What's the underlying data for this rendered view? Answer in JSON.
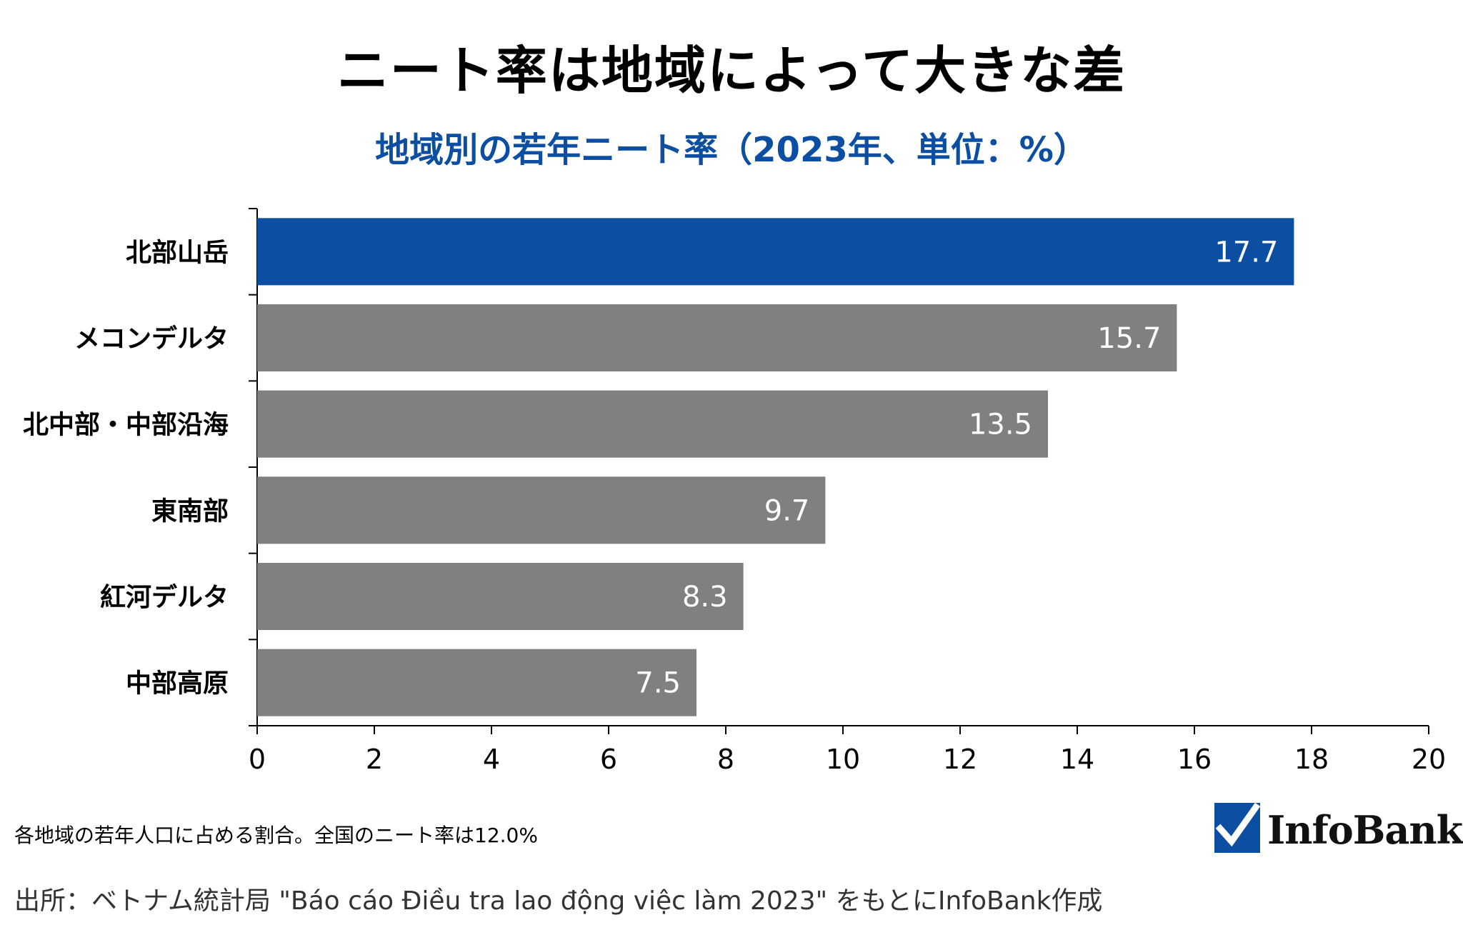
{
  "title": "ニート率は地域によって大きな差",
  "subtitle": "地域別の若年ニート率（2023年、単位：%）",
  "chart_data": {
    "type": "bar",
    "orientation": "horizontal",
    "categories": [
      "北部山岳",
      "メコンデルタ",
      "北中部・中部沿海",
      "東南部",
      "紅河デルタ",
      "中部高原"
    ],
    "values": [
      17.7,
      15.7,
      13.5,
      9.7,
      8.3,
      7.5
    ],
    "value_labels": [
      "17.7",
      "15.7",
      "13.5",
      "9.7",
      "8.3",
      "7.5"
    ],
    "x_ticks": [
      "0",
      "2",
      "4",
      "6",
      "8",
      "10",
      "12",
      "14",
      "16",
      "18",
      "20"
    ],
    "xlim": [
      0,
      20
    ],
    "xlabel": "",
    "ylabel": "",
    "grid": false,
    "colors": {
      "highlight": "#0b4ea2",
      "default": "#808080",
      "label_text": "#ffffff"
    },
    "highlight_index": 0
  },
  "footnote": "各地域の若年人口に占める割合。全国のニート率は12.0%",
  "source": "出所：ベトナム統計局 \"Báo cáo Điều tra lao động việc làm 2023\" をもとにInfoBank作成",
  "logo": {
    "text": "InfoBank",
    "icon": "checkmark-icon"
  }
}
